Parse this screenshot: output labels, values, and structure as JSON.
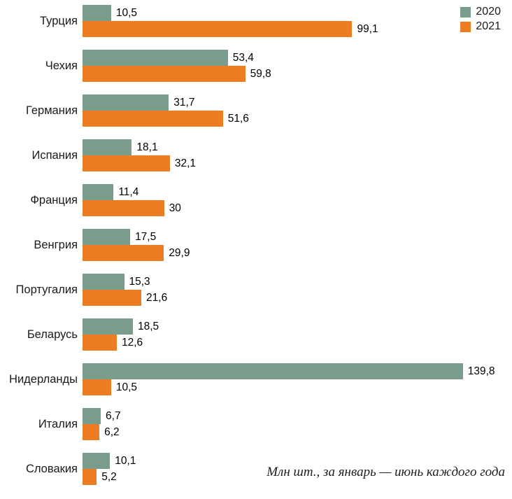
{
  "chart_data": {
    "type": "bar",
    "orientation": "horizontal",
    "title": "",
    "xlabel": "",
    "ylabel": "",
    "xmax": 145,
    "grid": false,
    "legend_position": "top-right",
    "caption": "Млн шт., за январь — июнь каждого года",
    "categories": [
      "Турция",
      "Чехия",
      "Германия",
      "Испания",
      "Франция",
      "Венгрия",
      "Португалия",
      "Беларусь",
      "Нидерланды",
      "Италия",
      "Словакия"
    ],
    "series": [
      {
        "name": "2020",
        "color": "#7a9c8c",
        "values": [
          10.5,
          53.4,
          31.7,
          18.1,
          11.4,
          17.5,
          15.3,
          18.5,
          139.8,
          6.7,
          10.1
        ]
      },
      {
        "name": "2021",
        "color": "#ed7d23",
        "values": [
          99.1,
          59.8,
          51.6,
          32.1,
          30,
          29.9,
          21.6,
          12.6,
          10.5,
          6.2,
          5.2
        ]
      }
    ],
    "value_labels": {
      "2020": [
        "10,5",
        "53,4",
        "31,7",
        "18,1",
        "11,4",
        "17,5",
        "15,3",
        "18,5",
        "139,8",
        "6,7",
        "10,1"
      ],
      "2021": [
        "99,1",
        "59,8",
        "51,6",
        "32,1",
        "30",
        "29,9",
        "21,6",
        "12,6",
        "10,5",
        "6,2",
        "5,2"
      ]
    }
  }
}
